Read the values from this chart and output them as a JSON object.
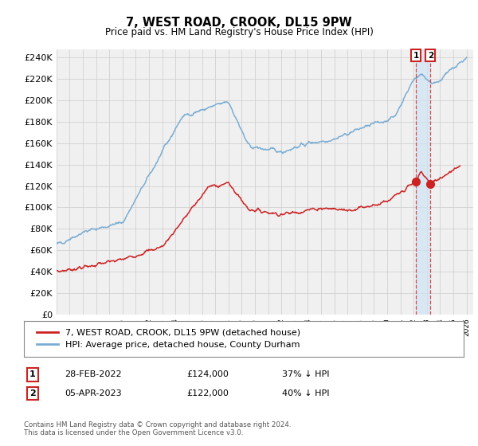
{
  "title": "7, WEST ROAD, CROOK, DL15 9PW",
  "subtitle": "Price paid vs. HM Land Registry's House Price Index (HPI)",
  "ylim": [
    0,
    248000
  ],
  "yticks": [
    0,
    20000,
    40000,
    60000,
    80000,
    100000,
    120000,
    140000,
    160000,
    180000,
    200000,
    220000,
    240000
  ],
  "xlim_start": 1995.0,
  "xlim_end": 2026.5,
  "legend_line1": "7, WEST ROAD, CROOK, DL15 9PW (detached house)",
  "legend_line2": "HPI: Average price, detached house, County Durham",
  "transaction1_date": "28-FEB-2022",
  "transaction1_price": "£124,000",
  "transaction1_hpi": "37% ↓ HPI",
  "transaction2_date": "05-APR-2023",
  "transaction2_price": "£122,000",
  "transaction2_hpi": "40% ↓ HPI",
  "footer": "Contains HM Land Registry data © Crown copyright and database right 2024.\nThis data is licensed under the Open Government Licence v3.0.",
  "hpi_color": "#7aadd4",
  "price_color": "#cc2222",
  "marker_color": "#cc2222",
  "bg_color": "#f0f0f0",
  "grid_color": "#cccccc",
  "transaction1_x": 2022.17,
  "transaction1_y": 124000,
  "transaction2_x": 2023.27,
  "transaction2_y": 122000,
  "vline1_x": 2022.17,
  "vline2_x": 2023.27,
  "shade_color": "#d0e4f5"
}
